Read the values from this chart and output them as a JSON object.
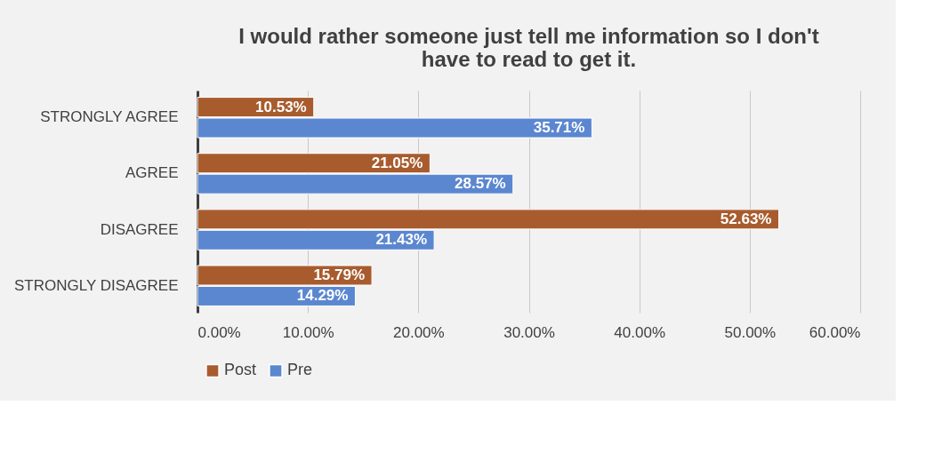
{
  "chart_data": {
    "type": "bar",
    "orientation": "horizontal",
    "title": [
      "I would rather someone just tell me information so I don't",
      "have to read to get it."
    ],
    "categories": [
      "STRONGLY AGREE",
      "AGREE",
      "DISAGREE",
      "STRONGLY DISAGREE"
    ],
    "series": [
      {
        "name": "Post",
        "color": "#a85c2e",
        "values": [
          10.53,
          21.05,
          52.63,
          15.79
        ],
        "value_labels": [
          "10.53%",
          "21.05%",
          "52.63%",
          "15.79%"
        ]
      },
      {
        "name": "Pre",
        "color": "#5b87d0",
        "values": [
          35.71,
          28.57,
          21.43,
          14.29
        ],
        "value_labels": [
          "35.71%",
          "28.57%",
          "21.43%",
          "14.29%"
        ]
      }
    ],
    "xlim": [
      0,
      60
    ],
    "xticks": [
      {
        "value": 0,
        "label": "0.00%"
      },
      {
        "value": 10,
        "label": "10.00%"
      },
      {
        "value": 20,
        "label": "20.00%"
      },
      {
        "value": 30,
        "label": "30.00%"
      },
      {
        "value": 40,
        "label": "40.00%"
      },
      {
        "value": 50,
        "label": "50.00%"
      },
      {
        "value": 60,
        "label": "60.00%"
      }
    ],
    "grid": "x",
    "legend": "bottom"
  }
}
